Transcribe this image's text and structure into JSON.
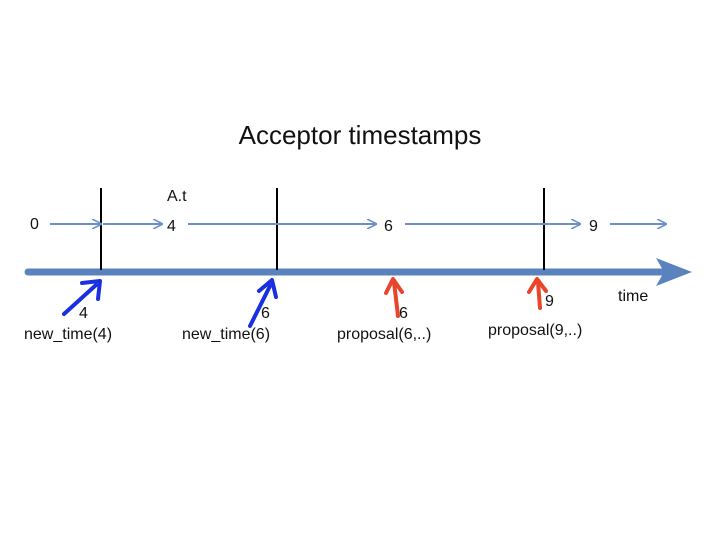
{
  "title": "Acceptor timestamps",
  "state_label": "A.t",
  "axis_label": "time",
  "state_values": [
    "0",
    "4",
    "6",
    "9"
  ],
  "events": [
    {
      "value": "4",
      "label": "new_time(4)",
      "kind": "new_time",
      "color": "#1a2fe0"
    },
    {
      "value": "6",
      "label": "new_time(6)",
      "kind": "new_time",
      "color": "#1a2fe0"
    },
    {
      "value": "6",
      "label": "proposal(6,..)",
      "kind": "proposal",
      "color": "#e8452a"
    },
    {
      "value": "9",
      "label": "proposal(9,..)",
      "kind": "proposal",
      "color": "#e8452a"
    }
  ],
  "colors": {
    "timeline": "#5a83be",
    "state_arrow": "#6b8fc9",
    "marker": "#000000",
    "new_time_arrow": "#1a2fe0",
    "proposal_arrow": "#e8452a"
  }
}
